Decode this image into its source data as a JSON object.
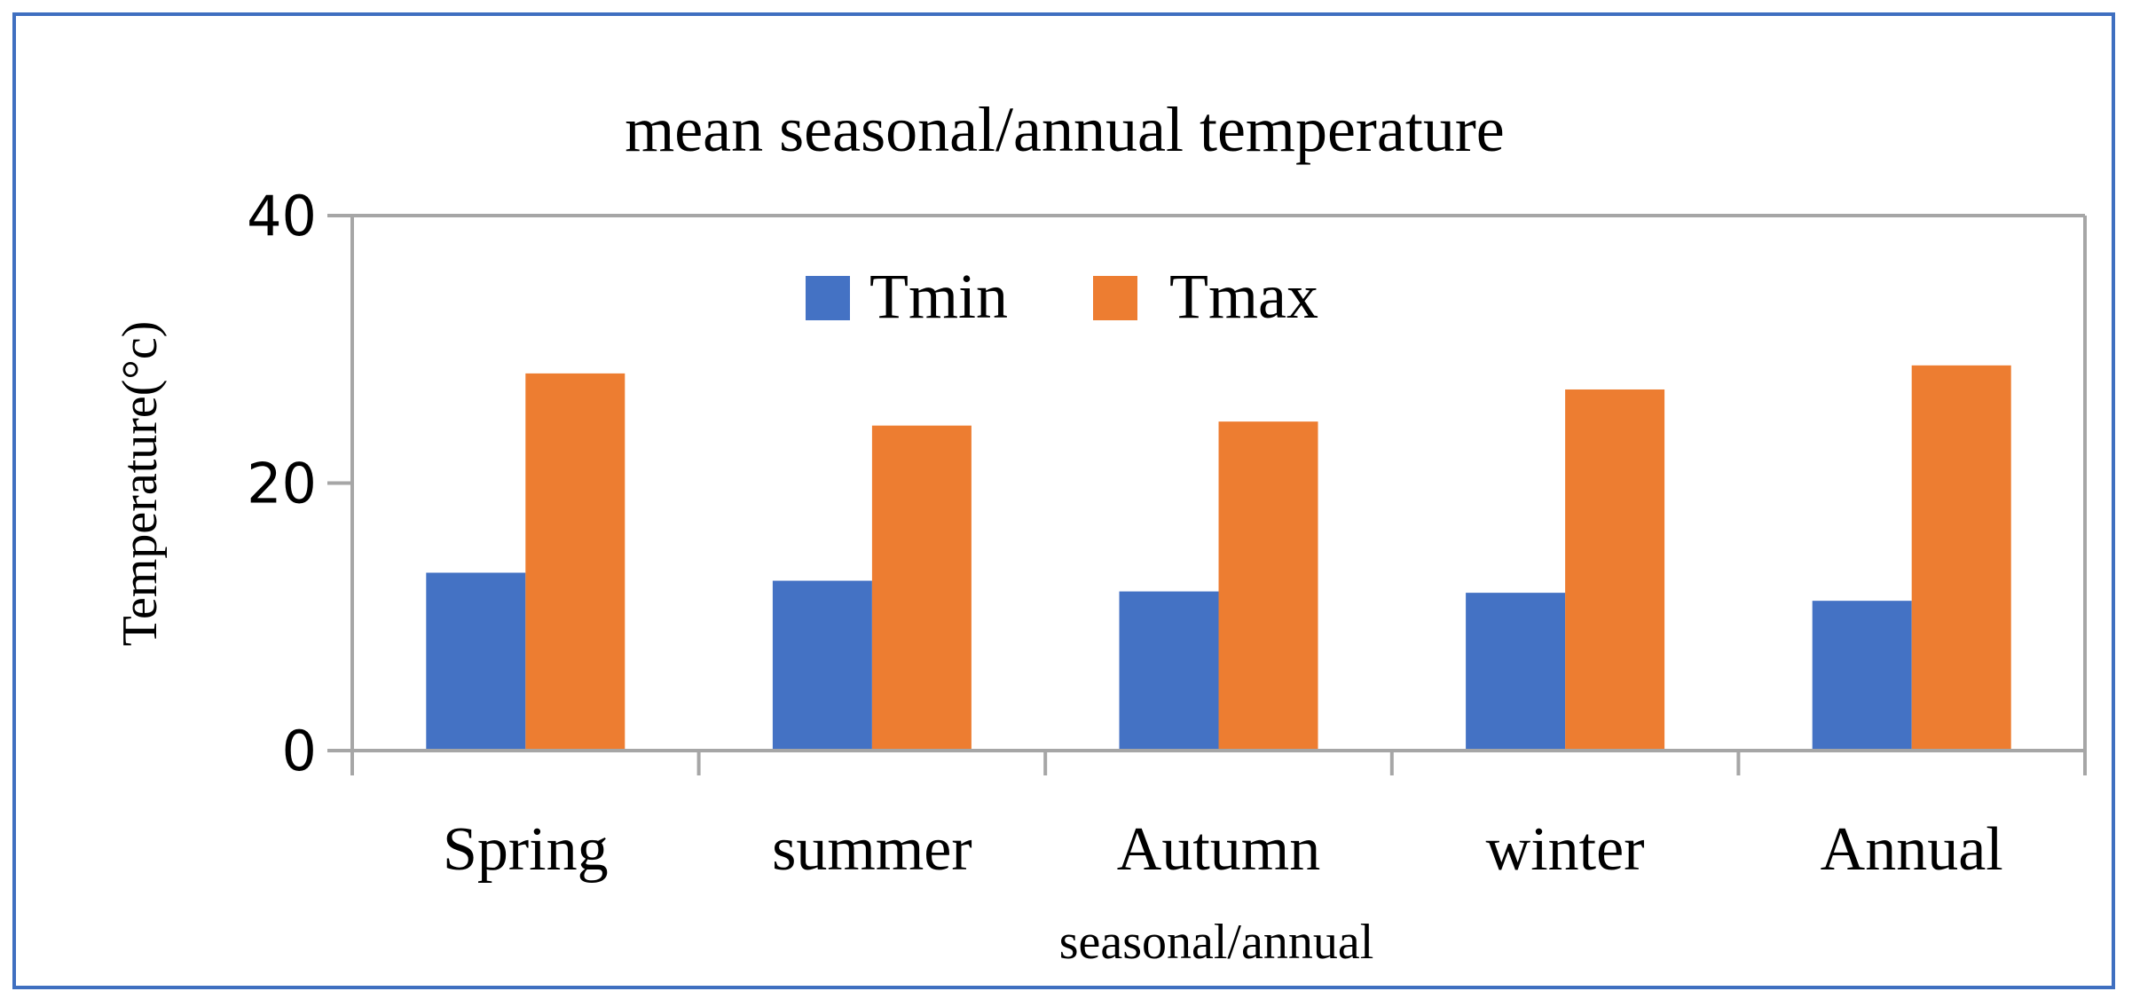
{
  "chart_data": {
    "type": "bar",
    "title": "mean seasonal/annual temperature",
    "xlabel": "seasonal/annual",
    "ylabel": "Temperature(°c)",
    "categories": [
      "Spring",
      "summer",
      "Autumn",
      "winter",
      "Annual"
    ],
    "series": [
      {
        "name": "Tmin",
        "color": "#4472c4",
        "values": [
          13.3,
          12.7,
          11.9,
          11.8,
          11.2
        ]
      },
      {
        "name": "Tmax",
        "color": "#ed7d31",
        "values": [
          28.2,
          24.3,
          24.6,
          27.0,
          28.8
        ]
      }
    ],
    "ylim": [
      0,
      40
    ],
    "yticks": [
      "0",
      "20",
      "40"
    ],
    "legend_position": "top-center",
    "grid": false
  }
}
